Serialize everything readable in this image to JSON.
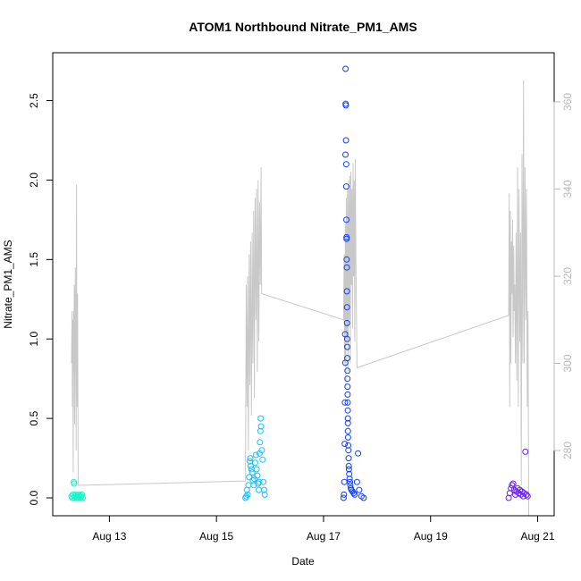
{
  "chart_data": {
    "type": "scatter",
    "title": "ATOM1 Northbound Nitrate_PM1_AMS",
    "xlabel": "Date",
    "ylabel": "Nitrate_PM1_AMS",
    "xlim": [
      "2016-08-12",
      "2016-08-21"
    ],
    "ylim": [
      0,
      2.7
    ],
    "y2lim": [
      262,
      368
    ],
    "x_ticks": [
      {
        "label": "Aug 13",
        "value": "2016-08-13"
      },
      {
        "label": "Aug 15",
        "value": "2016-08-15"
      },
      {
        "label": "Aug 17",
        "value": "2016-08-17"
      },
      {
        "label": "Aug 19",
        "value": "2016-08-19"
      },
      {
        "label": "Aug 21",
        "value": "2016-08-21"
      }
    ],
    "y_ticks": [
      "0.0",
      "0.5",
      "1.0",
      "1.5",
      "2.0",
      "2.5"
    ],
    "y2_ticks": [
      "280",
      "300",
      "320",
      "340",
      "360"
    ],
    "grid": false,
    "legend": "none",
    "colors": {
      "line": "#c8c8c8",
      "day1": "#19f2c5",
      "day2": "#14c0ff",
      "day3": "#1240f0",
      "day4": "#6a1af5",
      "axis": "#000000",
      "right_axis": "#b8b8b8"
    },
    "series": [
      {
        "color_key": "day1",
        "points": [
          [
            "2016-08-12 07:00",
            0.01
          ],
          [
            "2016-08-12 07:20",
            0.0
          ],
          [
            "2016-08-12 07:40",
            0.02
          ],
          [
            "2016-08-12 08:00",
            0.1
          ],
          [
            "2016-08-12 08:10",
            0.09
          ],
          [
            "2016-08-12 08:20",
            0.0
          ],
          [
            "2016-08-12 08:40",
            0.01
          ],
          [
            "2016-08-12 09:00",
            0.02
          ],
          [
            "2016-08-12 09:20",
            0.0
          ],
          [
            "2016-08-12 09:40",
            0.01
          ],
          [
            "2016-08-12 10:00",
            0.0
          ],
          [
            "2016-08-12 10:20",
            0.02
          ],
          [
            "2016-08-12 10:40",
            0.01
          ],
          [
            "2016-08-12 11:00",
            0.0
          ],
          [
            "2016-08-12 11:20",
            0.01
          ],
          [
            "2016-08-12 11:40",
            0.02
          ],
          [
            "2016-08-12 12:00",
            0.0
          ]
        ]
      },
      {
        "color_key": "day2",
        "points": [
          [
            "2016-08-15 13:00",
            0.0
          ],
          [
            "2016-08-15 13:20",
            0.01
          ],
          [
            "2016-08-15 13:40",
            0.05
          ],
          [
            "2016-08-15 14:00",
            0.02
          ],
          [
            "2016-08-15 14:20",
            0.08
          ],
          [
            "2016-08-15 14:40",
            0.13
          ],
          [
            "2016-08-15 15:00",
            0.23
          ],
          [
            "2016-08-15 15:10",
            0.25
          ],
          [
            "2016-08-15 15:20",
            0.2
          ],
          [
            "2016-08-15 15:40",
            0.18
          ],
          [
            "2016-08-15 16:00",
            0.16
          ],
          [
            "2016-08-15 16:20",
            0.11
          ],
          [
            "2016-08-15 16:40",
            0.08
          ],
          [
            "2016-08-15 17:00",
            0.12
          ],
          [
            "2016-08-15 17:20",
            0.22
          ],
          [
            "2016-08-15 17:40",
            0.27
          ],
          [
            "2016-08-15 18:00",
            0.18
          ],
          [
            "2016-08-15 18:20",
            0.14
          ],
          [
            "2016-08-15 18:40",
            0.09
          ],
          [
            "2016-08-15 19:00",
            0.05
          ],
          [
            "2016-08-15 19:10",
            0.1
          ],
          [
            "2016-08-15 19:20",
            0.28
          ],
          [
            "2016-08-15 19:30",
            0.35
          ],
          [
            "2016-08-15 19:40",
            0.42
          ],
          [
            "2016-08-15 19:50",
            0.5
          ],
          [
            "2016-08-15 20:00",
            0.45
          ],
          [
            "2016-08-15 20:20",
            0.3
          ],
          [
            "2016-08-15 20:40",
            0.24
          ],
          [
            "2016-08-15 21:00",
            0.1
          ],
          [
            "2016-08-15 21:20",
            0.05
          ],
          [
            "2016-08-15 21:40",
            0.02
          ]
        ]
      },
      {
        "color_key": "day3",
        "points": [
          [
            "2016-08-17 09:00",
            0.0
          ],
          [
            "2016-08-17 09:10",
            0.02
          ],
          [
            "2016-08-17 09:20",
            0.1
          ],
          [
            "2016-08-17 09:30",
            0.34
          ],
          [
            "2016-08-17 09:35",
            0.6
          ],
          [
            "2016-08-17 09:40",
            1.03
          ],
          [
            "2016-08-17 09:45",
            0.85
          ],
          [
            "2016-08-17 09:50",
            2.16
          ],
          [
            "2016-08-17 09:52",
            2.7
          ],
          [
            "2016-08-17 09:55",
            2.48
          ],
          [
            "2016-08-17 10:00",
            2.47
          ],
          [
            "2016-08-17 10:05",
            2.25
          ],
          [
            "2016-08-17 10:10",
            2.1
          ],
          [
            "2016-08-17 10:12",
            1.96
          ],
          [
            "2016-08-17 10:15",
            1.75
          ],
          [
            "2016-08-17 10:18",
            1.64
          ],
          [
            "2016-08-17 10:20",
            1.63
          ],
          [
            "2016-08-17 10:22",
            1.5
          ],
          [
            "2016-08-17 10:25",
            1.45
          ],
          [
            "2016-08-17 10:28",
            1.3
          ],
          [
            "2016-08-17 10:30",
            1.2
          ],
          [
            "2016-08-17 10:32",
            1.1
          ],
          [
            "2016-08-17 10:35",
            1.0
          ],
          [
            "2016-08-17 10:38",
            0.95
          ],
          [
            "2016-08-17 10:40",
            0.88
          ],
          [
            "2016-08-17 10:42",
            0.8
          ],
          [
            "2016-08-17 10:44",
            0.75
          ],
          [
            "2016-08-17 10:46",
            0.7
          ],
          [
            "2016-08-17 10:48",
            0.65
          ],
          [
            "2016-08-17 10:50",
            0.6
          ],
          [
            "2016-08-17 10:52",
            0.55
          ],
          [
            "2016-08-17 10:54",
            0.5
          ],
          [
            "2016-08-17 10:56",
            0.47
          ],
          [
            "2016-08-17 10:58",
            0.42
          ],
          [
            "2016-08-17 11:00",
            0.38
          ],
          [
            "2016-08-17 11:05",
            0.33
          ],
          [
            "2016-08-17 11:10",
            0.3
          ],
          [
            "2016-08-17 11:15",
            0.25
          ],
          [
            "2016-08-17 11:20",
            0.2
          ],
          [
            "2016-08-17 11:25",
            0.18
          ],
          [
            "2016-08-17 11:30",
            0.15
          ],
          [
            "2016-08-17 11:40",
            0.12
          ],
          [
            "2016-08-17 11:50",
            0.1
          ],
          [
            "2016-08-17 12:00",
            0.08
          ],
          [
            "2016-08-17 12:15",
            0.06
          ],
          [
            "2016-08-17 12:30",
            0.05
          ],
          [
            "2016-08-17 13:00",
            0.04
          ],
          [
            "2016-08-17 13:30",
            0.03
          ],
          [
            "2016-08-17 14:00",
            0.02
          ],
          [
            "2016-08-17 15:00",
            0.1
          ],
          [
            "2016-08-17 15:30",
            0.28
          ],
          [
            "2016-08-17 16:00",
            0.05
          ],
          [
            "2016-08-17 17:00",
            0.01
          ],
          [
            "2016-08-17 18:00",
            0.0
          ]
        ]
      },
      {
        "color_key": "day4",
        "points": [
          [
            "2016-08-20 11:00",
            0.0
          ],
          [
            "2016-08-20 11:30",
            0.03
          ],
          [
            "2016-08-20 12:00",
            0.06
          ],
          [
            "2016-08-20 12:30",
            0.08
          ],
          [
            "2016-08-20 13:00",
            0.09
          ],
          [
            "2016-08-20 13:30",
            0.05
          ],
          [
            "2016-08-20 14:00",
            0.02
          ],
          [
            "2016-08-20 14:30",
            0.04
          ],
          [
            "2016-08-20 15:00",
            0.06
          ],
          [
            "2016-08-20 15:30",
            0.03
          ],
          [
            "2016-08-20 16:00",
            0.05
          ],
          [
            "2016-08-20 16:30",
            0.02
          ],
          [
            "2016-08-20 17:00",
            0.04
          ],
          [
            "2016-08-20 17:30",
            0.01
          ],
          [
            "2016-08-20 18:00",
            0.03
          ],
          [
            "2016-08-20 18:30",
            0.29
          ],
          [
            "2016-08-20 19:00",
            0.02
          ],
          [
            "2016-08-20 19:30",
            0.01
          ]
        ]
      }
    ],
    "line_series": {
      "axis": "right",
      "points": [
        [
          "2016-08-12 07:00",
          300
        ],
        [
          "2016-08-12 07:15",
          312
        ],
        [
          "2016-08-12 07:25",
          290
        ],
        [
          "2016-08-12 07:35",
          310
        ],
        [
          "2016-08-12 07:45",
          275
        ],
        [
          "2016-08-12 07:55",
          312
        ],
        [
          "2016-08-12 08:05",
          298
        ],
        [
          "2016-08-12 08:15",
          318
        ],
        [
          "2016-08-12 08:25",
          286
        ],
        [
          "2016-08-12 08:35",
          306
        ],
        [
          "2016-08-12 08:45",
          322
        ],
        [
          "2016-08-12 08:55",
          300
        ],
        [
          "2016-08-12 09:05",
          280
        ],
        [
          "2016-08-12 09:15",
          341
        ],
        [
          "2016-08-12 09:25",
          300
        ],
        [
          "2016-08-12 09:35",
          290
        ],
        [
          "2016-08-12 09:45",
          316
        ],
        [
          "2016-08-12 10:00",
          272
        ],
        [
          "2016-08-15 13:00",
          273
        ],
        [
          "2016-08-15 13:20",
          318
        ],
        [
          "2016-08-15 13:40",
          290
        ],
        [
          "2016-08-15 14:00",
          320
        ],
        [
          "2016-08-15 14:20",
          280
        ],
        [
          "2016-08-15 14:40",
          325
        ],
        [
          "2016-08-15 15:00",
          295
        ],
        [
          "2016-08-15 15:20",
          328
        ],
        [
          "2016-08-15 15:40",
          288
        ],
        [
          "2016-08-15 16:00",
          330
        ],
        [
          "2016-08-15 16:20",
          300
        ],
        [
          "2016-08-15 16:40",
          335
        ],
        [
          "2016-08-15 17:00",
          292
        ],
        [
          "2016-08-15 17:20",
          338
        ],
        [
          "2016-08-15 17:40",
          310
        ],
        [
          "2016-08-15 18:00",
          340
        ],
        [
          "2016-08-15 18:20",
          298
        ],
        [
          "2016-08-15 18:40",
          342
        ],
        [
          "2016-08-15 19:00",
          305
        ],
        [
          "2016-08-15 19:20",
          337
        ],
        [
          "2016-08-15 19:40",
          318
        ],
        [
          "2016-08-15 20:00",
          345
        ],
        [
          "2016-08-15 20:15",
          316
        ],
        [
          "2016-08-17 09:00",
          310
        ],
        [
          "2016-08-17 09:15",
          325
        ],
        [
          "2016-08-17 09:30",
          300
        ],
        [
          "2016-08-17 09:45",
          332
        ],
        [
          "2016-08-17 10:00",
          295
        ],
        [
          "2016-08-17 10:15",
          338
        ],
        [
          "2016-08-17 10:30",
          305
        ],
        [
          "2016-08-17 10:45",
          340
        ],
        [
          "2016-08-17 11:00",
          298
        ],
        [
          "2016-08-17 11:15",
          342
        ],
        [
          "2016-08-17 11:30",
          310
        ],
        [
          "2016-08-17 11:45",
          343
        ],
        [
          "2016-08-17 12:00",
          300
        ],
        [
          "2016-08-17 12:15",
          344
        ],
        [
          "2016-08-17 12:30",
          318
        ],
        [
          "2016-08-17 12:45",
          340
        ],
        [
          "2016-08-17 13:00",
          308
        ],
        [
          "2016-08-17 13:15",
          346
        ],
        [
          "2016-08-17 13:30",
          320
        ],
        [
          "2016-08-17 13:45",
          342
        ],
        [
          "2016-08-17 14:00",
          305
        ],
        [
          "2016-08-17 14:15",
          347
        ],
        [
          "2016-08-17 14:30",
          325
        ],
        [
          "2016-08-17 15:00",
          299
        ],
        [
          "2016-08-20 11:00",
          311
        ],
        [
          "2016-08-20 11:15",
          339
        ],
        [
          "2016-08-20 11:30",
          290
        ],
        [
          "2016-08-20 11:45",
          335
        ],
        [
          "2016-08-20 12:00",
          300
        ],
        [
          "2016-08-20 12:15",
          328
        ],
        [
          "2016-08-20 12:30",
          316
        ],
        [
          "2016-08-20 12:45",
          333
        ],
        [
          "2016-08-20 13:00",
          306
        ],
        [
          "2016-08-20 13:15",
          327
        ],
        [
          "2016-08-20 13:30",
          312
        ],
        [
          "2016-08-20 13:45",
          318
        ],
        [
          "2016-08-20 14:00",
          300
        ],
        [
          "2016-08-20 14:20",
          330
        ],
        [
          "2016-08-20 14:40",
          296
        ],
        [
          "2016-08-20 15:00",
          345
        ],
        [
          "2016-08-20 15:20",
          290
        ],
        [
          "2016-08-20 15:40",
          340
        ],
        [
          "2016-08-20 16:00",
          305
        ],
        [
          "2016-08-20 16:20",
          330
        ],
        [
          "2016-08-20 16:40",
          272
        ],
        [
          "2016-08-20 17:00",
          348
        ],
        [
          "2016-08-20 17:20",
          300
        ],
        [
          "2016-08-20 17:40",
          365
        ],
        [
          "2016-08-20 18:00",
          300
        ],
        [
          "2016-08-20 18:20",
          345
        ],
        [
          "2016-08-20 18:40",
          310
        ],
        [
          "2016-08-20 19:00",
          340
        ],
        [
          "2016-08-20 19:20",
          290
        ],
        [
          "2016-08-20 19:40",
          312
        ],
        [
          "2016-08-20 20:00",
          265
        ]
      ]
    }
  }
}
